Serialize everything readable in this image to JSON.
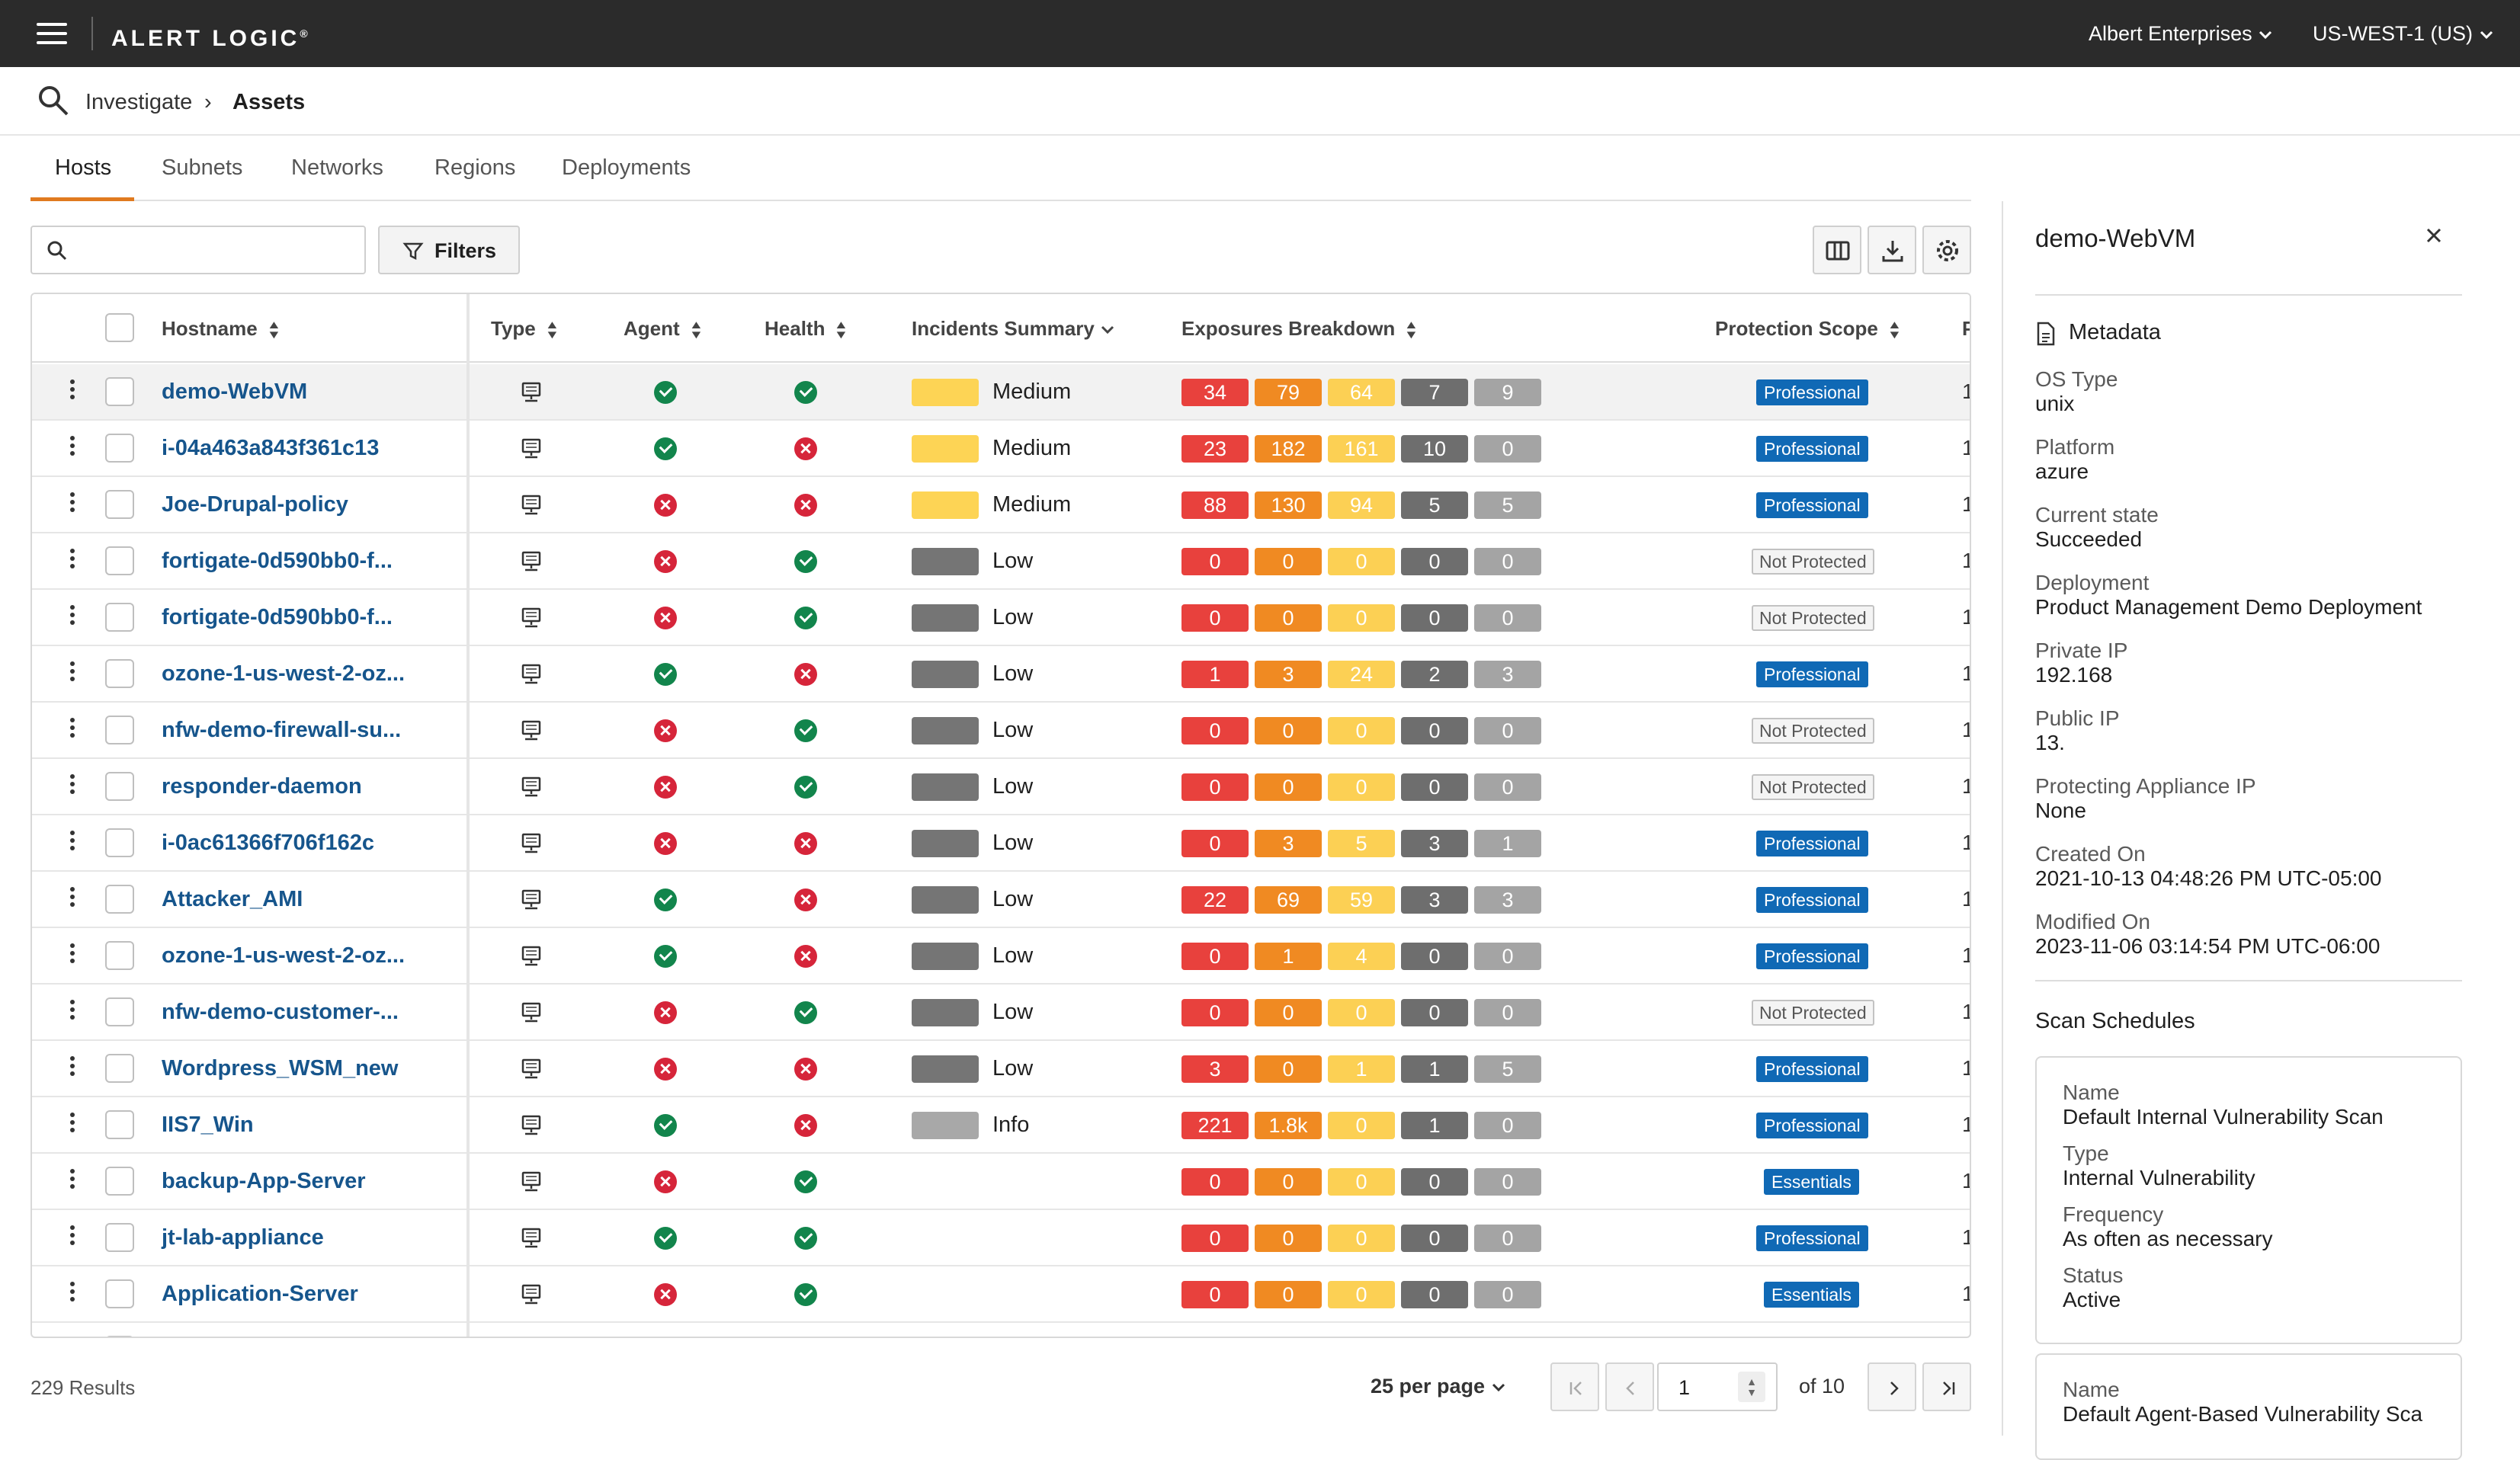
{
  "app": {
    "logo": "ALERT LOGIC",
    "logo_mark": "®",
    "account": "Albert Enterprises",
    "region": "US-WEST-1 (US)"
  },
  "breadcrumb": {
    "parent": "Investigate",
    "current": "Assets"
  },
  "tabs": [
    {
      "label": "Hosts"
    },
    {
      "label": "Subnets"
    },
    {
      "label": "Networks"
    },
    {
      "label": "Regions"
    },
    {
      "label": "Deployments"
    }
  ],
  "toolbar": {
    "search_placeholder": "",
    "filters_label": "Filters"
  },
  "columns": {
    "hostname": "Hostname",
    "type": "Type",
    "agent": "Agent",
    "health": "Health",
    "incidents": "Incidents Summary",
    "exposures": "Exposures Breakdown",
    "protection": "Protection Scope",
    "next": "P"
  },
  "incident_colors": {
    "Medium": "#fdd455",
    "Low": "#757575",
    "Info": "#a8a8a8"
  },
  "rows": [
    {
      "hostname": "demo-WebVM",
      "agent": "ok",
      "health": "ok",
      "incident": "Medium",
      "exposures": [
        "34",
        "79",
        "64",
        "7",
        "9"
      ],
      "scope": "Professional",
      "next": "1",
      "selected": true
    },
    {
      "hostname": "i-04a463a843f361c13",
      "agent": "ok",
      "health": "err",
      "incident": "Medium",
      "exposures": [
        "23",
        "182",
        "161",
        "10",
        "0"
      ],
      "scope": "Professional",
      "next": "1"
    },
    {
      "hostname": "Joe-Drupal-policy",
      "agent": "err",
      "health": "err",
      "incident": "Medium",
      "exposures": [
        "88",
        "130",
        "94",
        "5",
        "5"
      ],
      "scope": "Professional",
      "next": "1"
    },
    {
      "hostname": "fortigate-0d590bb0-f...",
      "agent": "err",
      "health": "ok",
      "incident": "Low",
      "exposures": [
        "0",
        "0",
        "0",
        "0",
        "0"
      ],
      "scope": "Not Protected",
      "next": "1"
    },
    {
      "hostname": "fortigate-0d590bb0-f...",
      "agent": "err",
      "health": "ok",
      "incident": "Low",
      "exposures": [
        "0",
        "0",
        "0",
        "0",
        "0"
      ],
      "scope": "Not Protected",
      "next": "1"
    },
    {
      "hostname": "ozone-1-us-west-2-oz...",
      "agent": "ok",
      "health": "err",
      "incident": "Low",
      "exposures": [
        "1",
        "3",
        "24",
        "2",
        "3"
      ],
      "scope": "Professional",
      "next": "1"
    },
    {
      "hostname": "nfw-demo-firewall-su...",
      "agent": "err",
      "health": "ok",
      "incident": "Low",
      "exposures": [
        "0",
        "0",
        "0",
        "0",
        "0"
      ],
      "scope": "Not Protected",
      "next": "1"
    },
    {
      "hostname": "responder-daemon",
      "agent": "err",
      "health": "ok",
      "incident": "Low",
      "exposures": [
        "0",
        "0",
        "0",
        "0",
        "0"
      ],
      "scope": "Not Protected",
      "next": "1"
    },
    {
      "hostname": "i-0ac61366f706f162c",
      "agent": "err",
      "health": "err",
      "incident": "Low",
      "exposures": [
        "0",
        "3",
        "5",
        "3",
        "1"
      ],
      "scope": "Professional",
      "next": "1"
    },
    {
      "hostname": "Attacker_AMI",
      "agent": "ok",
      "health": "err",
      "incident": "Low",
      "exposures": [
        "22",
        "69",
        "59",
        "3",
        "3"
      ],
      "scope": "Professional",
      "next": "1"
    },
    {
      "hostname": "ozone-1-us-west-2-oz...",
      "agent": "ok",
      "health": "err",
      "incident": "Low",
      "exposures": [
        "0",
        "1",
        "4",
        "0",
        "0"
      ],
      "scope": "Professional",
      "next": "1"
    },
    {
      "hostname": "nfw-demo-customer-...",
      "agent": "err",
      "health": "ok",
      "incident": "Low",
      "exposures": [
        "0",
        "0",
        "0",
        "0",
        "0"
      ],
      "scope": "Not Protected",
      "next": "1"
    },
    {
      "hostname": "Wordpress_WSM_new",
      "agent": "err",
      "health": "err",
      "incident": "Low",
      "exposures": [
        "3",
        "0",
        "1",
        "1",
        "5"
      ],
      "scope": "Professional",
      "next": "1"
    },
    {
      "hostname": "IIS7_Win",
      "agent": "ok",
      "health": "err",
      "incident": "Info",
      "exposures": [
        "221",
        "1.8k",
        "0",
        "1",
        "0"
      ],
      "scope": "Professional",
      "next": "1"
    },
    {
      "hostname": "backup-App-Server",
      "agent": "err",
      "health": "ok",
      "incident": "",
      "exposures": [
        "0",
        "0",
        "0",
        "0",
        "0"
      ],
      "scope": "Essentials",
      "next": "1"
    },
    {
      "hostname": "jt-lab-appliance",
      "agent": "ok",
      "health": "ok",
      "incident": "",
      "exposures": [
        "0",
        "0",
        "0",
        "0",
        "0"
      ],
      "scope": "Professional",
      "next": "1"
    },
    {
      "hostname": "Application-Server",
      "agent": "err",
      "health": "ok",
      "incident": "",
      "exposures": [
        "0",
        "0",
        "0",
        "0",
        "0"
      ],
      "scope": "Essentials",
      "next": "1"
    }
  ],
  "footer": {
    "results": "229 Results",
    "per_page": "25 per page",
    "page": "1",
    "of": "of 10"
  },
  "detail": {
    "title": "demo-WebVM",
    "section": "Metadata",
    "fields": [
      {
        "label": "OS Type",
        "value": "unix"
      },
      {
        "label": "Platform",
        "value": "azure"
      },
      {
        "label": "Current state",
        "value": "Succeeded"
      },
      {
        "label": "Deployment",
        "value": "Product Management Demo Deployment"
      },
      {
        "label": "Private IP",
        "value": "192.168"
      },
      {
        "label": "Public IP",
        "value": "13."
      },
      {
        "label": "Protecting Appliance IP",
        "value": "None"
      },
      {
        "label": "Created On",
        "value": "2021-10-13 04:48:26 PM UTC-05:00"
      },
      {
        "label": "Modified On",
        "value": "2023-11-06 03:14:54 PM UTC-06:00"
      }
    ],
    "scan_title": "Scan Schedules",
    "scans": [
      {
        "name_label": "Name",
        "name": "Default Internal Vulnerability Scan",
        "type_label": "Type",
        "type": "Internal Vulnerability",
        "freq_label": "Frequency",
        "freq": "As often as necessary",
        "status_label": "Status",
        "status": "Active"
      },
      {
        "name_label": "Name",
        "name": "Default Agent-Based Vulnerability Sca"
      }
    ]
  }
}
